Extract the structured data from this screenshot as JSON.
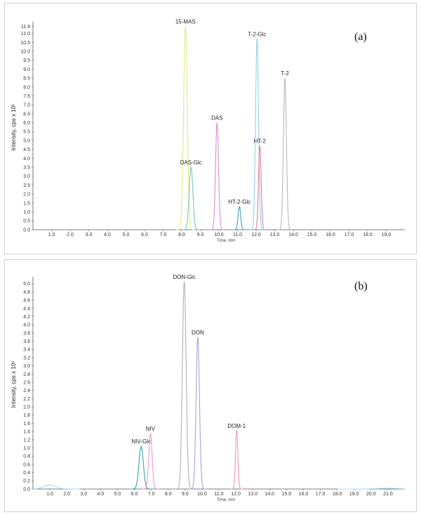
{
  "chart_data": [
    {
      "type": "line",
      "panel_label": "(a)",
      "ylabel": "Intensity, cps x 10⁵",
      "xlabel": "Time, min",
      "xlim": [
        0,
        20
      ],
      "ylim": [
        0,
        11.5
      ],
      "x_ticks": [
        "1.0",
        "2.0",
        "3.0",
        "4.0",
        "5.0",
        "6.0",
        "7.0",
        "8.0",
        "9.0",
        "10.0",
        "11.0",
        "12.0",
        "13.0",
        "14.0",
        "15.0",
        "16.0",
        "17.0",
        "18.0",
        "19.0"
      ],
      "y_ticks": [
        "0.0",
        "0.5",
        "1.0",
        "1.5",
        "2.0",
        "2.5",
        "3.0",
        "3.5",
        "4.0",
        "4.5",
        "5.0",
        "5.5",
        "6.0",
        "6.5",
        "7.0",
        "7.5",
        "8.0",
        "8.5",
        "9.0",
        "9.5",
        "10.0",
        "10.5",
        "11.0",
        "11.4"
      ],
      "series": [
        {
          "label": "15-MAS",
          "rt": 8.2,
          "height": 11.4,
          "width": 0.1,
          "color": "#e6e68a"
        },
        {
          "label": "DAS-Glc",
          "rt": 8.5,
          "height": 3.5,
          "width": 0.1,
          "color": "#77c9ab"
        },
        {
          "label": "DAS",
          "rt": 9.9,
          "height": 6.0,
          "width": 0.08,
          "color": "#d58fd0"
        },
        {
          "label": "HT-2-Glc",
          "rt": 11.1,
          "height": 1.3,
          "width": 0.07,
          "color": "#3aa5b8"
        },
        {
          "label": "T-2-Glc",
          "rt": 12.05,
          "height": 10.7,
          "width": 0.08,
          "color": "#8fd4e4"
        },
        {
          "label": "HT-2",
          "rt": 12.2,
          "height": 4.7,
          "width": 0.07,
          "color": "#e07aa8"
        },
        {
          "label": "T-2",
          "rt": 13.55,
          "height": 8.5,
          "width": 0.08,
          "color": "#b8b8b8"
        }
      ]
    },
    {
      "type": "line",
      "panel_label": "(b)",
      "ylabel": "Intensity, cps x 10⁵",
      "xlabel": "Time, min",
      "xlim": [
        0,
        22
      ],
      "ylim": [
        0,
        5.1
      ],
      "x_ticks": [
        "1.0",
        "2.0",
        "3.0",
        "4.0",
        "5.0",
        "6.0",
        "7.0",
        "8.0",
        "9.0",
        "10.0",
        "11.0",
        "12.0",
        "13.0",
        "14.0",
        "15.0",
        "16.0",
        "17.0",
        "18.0",
        "19.0",
        "20.0",
        "21.0"
      ],
      "y_ticks": [
        "0.0",
        "0.2",
        "0.4",
        "0.6",
        "0.8",
        "1.0",
        "1.2",
        "1.4",
        "1.6",
        "1.8",
        "2.0",
        "2.2",
        "2.4",
        "2.6",
        "2.8",
        "3.0",
        "3.2",
        "3.4",
        "3.6",
        "3.8",
        "4.0",
        "4.2",
        "4.4",
        "4.6",
        "4.8",
        "5.0"
      ],
      "series": [
        {
          "label": "",
          "rt": 1.0,
          "height": 0.1,
          "width": 0.35,
          "color": "#a9dbe8"
        },
        {
          "label": "NIV-Glc",
          "rt": 6.4,
          "height": 1.04,
          "width": 0.13,
          "color": "#3aa5a0"
        },
        {
          "label": "NIV",
          "rt": 6.95,
          "height": 1.35,
          "width": 0.1,
          "color": "#e79ad6"
        },
        {
          "label": "DON-Glc",
          "rt": 8.95,
          "height": 5.05,
          "width": 0.11,
          "color": "#b0b0b0"
        },
        {
          "label": "DON",
          "rt": 9.75,
          "height": 3.7,
          "width": 0.1,
          "color": "#a9a2d6"
        },
        {
          "label": "DOM-1",
          "rt": 12.05,
          "height": 1.42,
          "width": 0.07,
          "color": "#f09aa8"
        },
        {
          "label": "",
          "rt": 21.0,
          "height": 0.02,
          "width": 0.6,
          "color": "#a9dbe8"
        }
      ]
    }
  ]
}
